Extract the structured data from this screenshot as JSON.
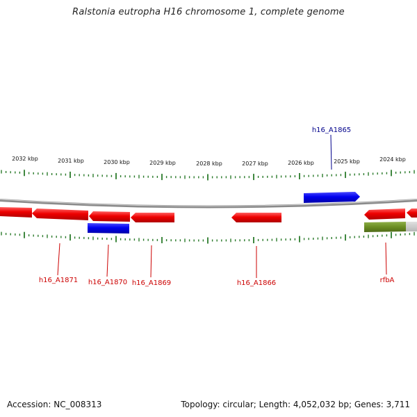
{
  "title": "Ralstonia eutropha H16 chromosome 1, complete genome",
  "footer": {
    "accession": "Accession: NC_008313",
    "summary": "Topology: circular; Length: 4,052,032 bp; Genes: 3,711"
  },
  "colors": {
    "forward_gene": "#0000ee",
    "reverse_gene": "#ee0000",
    "rna_gene": "#6b8e23",
    "ticks": "#2a7a2a",
    "backbone": "#888888",
    "label_forward": "#00008b",
    "label_reverse": "#cc0000"
  },
  "scale_labels": [
    "2032 kbp",
    "2031 kbp",
    "2030 kbp",
    "2029 kbp",
    "2028 kbp",
    "2027 kbp",
    "2026 kbp",
    "2025 kbp",
    "2024 kbp"
  ],
  "gene_labels": {
    "h16_A1865": "h16_A1865",
    "h16_A1871": "h16_A1871",
    "h16_A1870": "h16_A1870",
    "h16_A1869": "h16_A1869",
    "h16_A1866": "h16_A1866",
    "rfbA": "rfbA"
  }
}
